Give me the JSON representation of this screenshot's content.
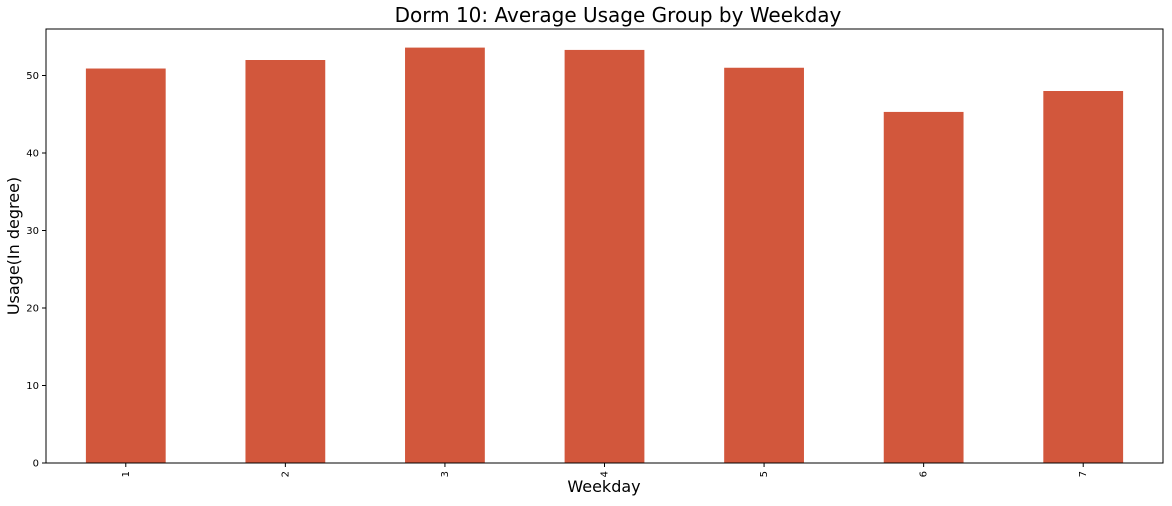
{
  "chart_data": {
    "type": "bar",
    "title": "Dorm 10: Average Usage Group by Weekday",
    "xlabel": "Weekday",
    "ylabel": "Usage(In degree)",
    "categories": [
      "1",
      "2",
      "3",
      "4",
      "5",
      "6",
      "7"
    ],
    "values": [
      50.9,
      52.0,
      53.6,
      53.3,
      51.0,
      45.3,
      48.0
    ],
    "ylim": [
      0,
      56
    ],
    "yticks": [
      0,
      10,
      20,
      30,
      40,
      50
    ],
    "ytick_labels": [
      "0",
      "10",
      "20",
      "30",
      "40",
      "50"
    ],
    "bar_color": "#d2573c",
    "grid": false,
    "legend": "none"
  }
}
